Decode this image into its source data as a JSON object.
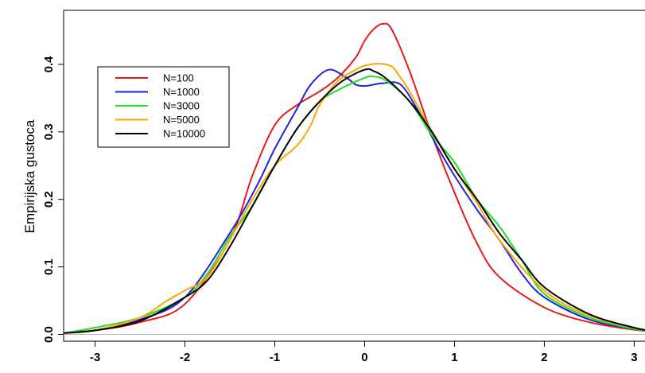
{
  "chart_data": {
    "type": "line",
    "title": "",
    "xlabel": "",
    "ylabel": "Empirijska gustoca",
    "xlim": [
      -3.35,
      3.2
    ],
    "ylim": [
      -0.01,
      0.48
    ],
    "x_ticks": [
      -3,
      -2,
      -1,
      0,
      1,
      2,
      3
    ],
    "x_tick_labels": [
      "-3",
      "-2",
      "-1",
      "0",
      "1",
      "2",
      "3"
    ],
    "y_ticks": [
      0.0,
      0.1,
      0.2,
      0.3,
      0.4
    ],
    "y_tick_labels": [
      "0.0",
      "0.1",
      "0.2",
      "0.3",
      "0.4"
    ],
    "grid": false,
    "legend_position": "top-left",
    "baseline": 0,
    "series": [
      {
        "name": "N=100",
        "color": "#e41a1c",
        "x": [
          -3.35,
          -3.0,
          -2.5,
          -2.0,
          -1.5,
          -1.25,
          -1.0,
          -0.75,
          -0.5,
          -0.3,
          -0.1,
          0.0,
          0.1,
          0.2,
          0.3,
          0.5,
          0.75,
          1.0,
          1.25,
          1.5,
          2.0,
          2.5,
          3.0,
          3.2
        ],
        "y": [
          0.002,
          0.006,
          0.018,
          0.045,
          0.14,
          0.235,
          0.31,
          0.34,
          0.36,
          0.38,
          0.41,
          0.435,
          0.452,
          0.46,
          0.452,
          0.39,
          0.295,
          0.21,
          0.135,
          0.085,
          0.04,
          0.018,
          0.007,
          0.004
        ]
      },
      {
        "name": "N=1000",
        "color": "#2020dd",
        "x": [
          -3.35,
          -3.0,
          -2.5,
          -2.0,
          -1.5,
          -1.2,
          -1.0,
          -0.75,
          -0.6,
          -0.4,
          -0.2,
          -0.1,
          0.0,
          0.1,
          0.2,
          0.4,
          0.6,
          0.8,
          1.0,
          1.25,
          1.5,
          1.75,
          2.0,
          2.5,
          3.0,
          3.2
        ],
        "y": [
          0.002,
          0.006,
          0.022,
          0.055,
          0.15,
          0.22,
          0.275,
          0.335,
          0.37,
          0.392,
          0.38,
          0.37,
          0.368,
          0.37,
          0.372,
          0.37,
          0.33,
          0.28,
          0.235,
          0.185,
          0.14,
          0.09,
          0.055,
          0.022,
          0.008,
          0.004
        ]
      },
      {
        "name": "N=3000",
        "color": "#22dd22",
        "x": [
          -3.35,
          -3.0,
          -2.5,
          -2.0,
          -1.75,
          -1.5,
          -1.25,
          -1.0,
          -0.75,
          -0.5,
          -0.25,
          0.0,
          0.1,
          0.25,
          0.5,
          0.75,
          1.0,
          1.25,
          1.5,
          1.75,
          2.0,
          2.5,
          3.0,
          3.2
        ],
        "y": [
          0.002,
          0.01,
          0.025,
          0.055,
          0.09,
          0.145,
          0.19,
          0.25,
          0.305,
          0.345,
          0.365,
          0.38,
          0.382,
          0.375,
          0.345,
          0.295,
          0.255,
          0.2,
          0.16,
          0.11,
          0.06,
          0.025,
          0.008,
          0.004
        ]
      },
      {
        "name": "N=5000",
        "color": "#ffa500",
        "x": [
          -3.35,
          -3.0,
          -2.5,
          -2.2,
          -2.0,
          -1.75,
          -1.5,
          -1.25,
          -1.0,
          -0.75,
          -0.6,
          -0.5,
          -0.3,
          -0.1,
          0.0,
          0.15,
          0.3,
          0.4,
          0.5,
          0.75,
          1.0,
          1.25,
          1.5,
          2.0,
          2.5,
          3.0,
          3.2
        ],
        "y": [
          0.002,
          0.006,
          0.025,
          0.05,
          0.065,
          0.085,
          0.14,
          0.2,
          0.25,
          0.28,
          0.31,
          0.34,
          0.375,
          0.392,
          0.398,
          0.401,
          0.397,
          0.38,
          0.36,
          0.3,
          0.245,
          0.195,
          0.14,
          0.065,
          0.028,
          0.01,
          0.005
        ]
      },
      {
        "name": "N=10000",
        "color": "#000000",
        "x": [
          -3.35,
          -3.0,
          -2.5,
          -2.0,
          -1.75,
          -1.5,
          -1.25,
          -1.0,
          -0.75,
          -0.5,
          -0.25,
          0.0,
          0.1,
          0.25,
          0.5,
          0.75,
          1.0,
          1.25,
          1.5,
          1.75,
          2.0,
          2.5,
          3.0,
          3.2
        ],
        "y": [
          0.002,
          0.006,
          0.02,
          0.055,
          0.08,
          0.13,
          0.19,
          0.25,
          0.305,
          0.345,
          0.375,
          0.392,
          0.39,
          0.378,
          0.345,
          0.3,
          0.245,
          0.2,
          0.15,
          0.11,
          0.07,
          0.03,
          0.01,
          0.005
        ]
      }
    ]
  }
}
